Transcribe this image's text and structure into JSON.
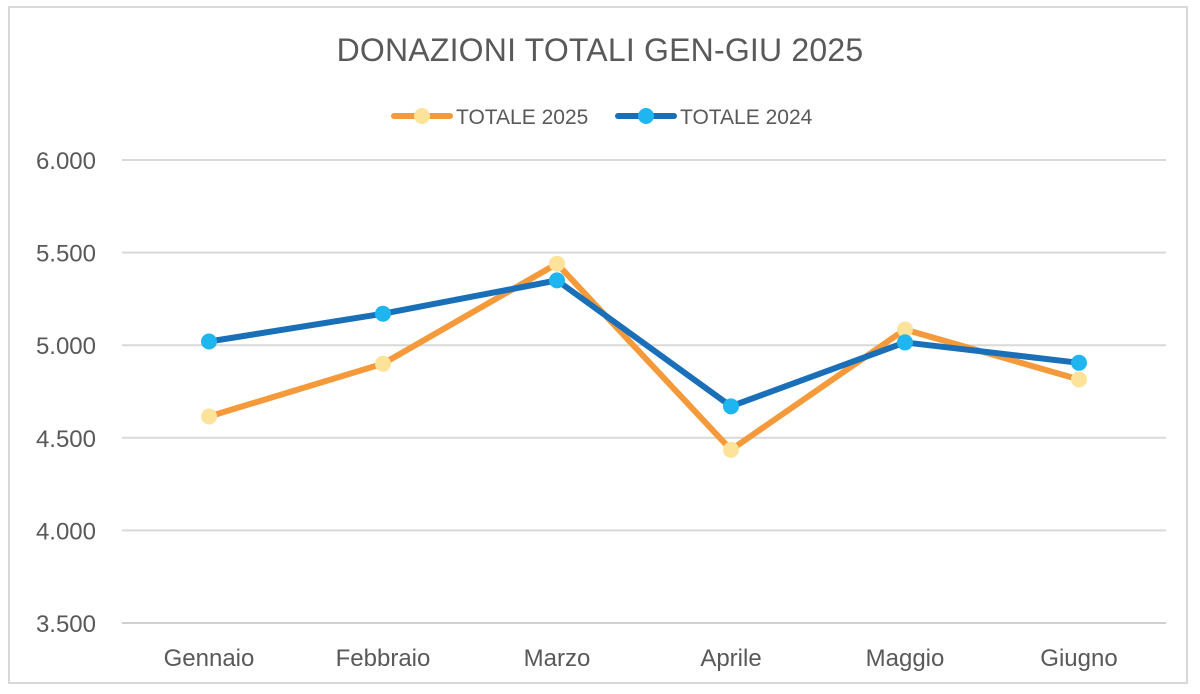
{
  "chart_data": {
    "type": "line",
    "title": "DONAZIONI TOTALI GEN-GIU 2025",
    "xlabel": "",
    "ylabel": "",
    "categories": [
      "Gennaio",
      "Febbraio",
      "Marzo",
      "Aprile",
      "Maggio",
      "Giugno"
    ],
    "ylim": [
      3500,
      6000
    ],
    "yticks": [
      3500,
      4000,
      4500,
      5000,
      5500,
      6000
    ],
    "ytick_labels": [
      "3.500",
      "4.000",
      "4.500",
      "5.000",
      "5.500",
      "6.000"
    ],
    "grid": true,
    "legend_position": "top-center",
    "series": [
      {
        "name": "TOTALE 2025",
        "line_color": "#f59a3b",
        "marker_color": "#fde29a",
        "values": [
          4615,
          4900,
          5440,
          4435,
          5085,
          4815
        ]
      },
      {
        "name": "TOTALE 2024",
        "line_color": "#1a70b8",
        "marker_color": "#1fb5ee",
        "values": [
          5020,
          5170,
          5350,
          4670,
          5015,
          4905
        ]
      }
    ]
  }
}
